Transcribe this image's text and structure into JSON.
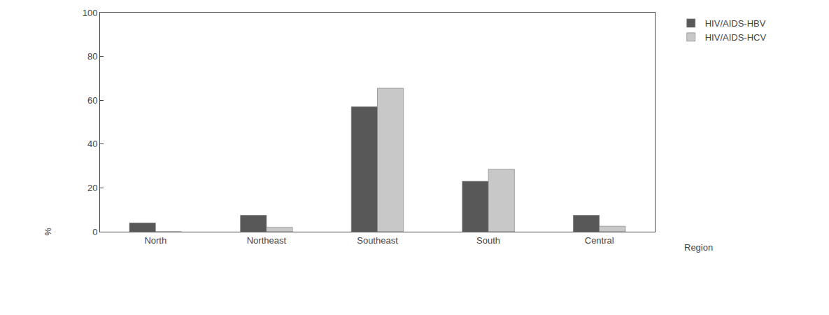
{
  "chart_data": {
    "type": "bar",
    "x_label": "Region",
    "y_label": "%",
    "categories": [
      "North",
      "Northeast",
      "Southeast",
      "South",
      "Central"
    ],
    "series": [
      {
        "name": "HIV/AIDS-HBV",
        "color": "#585858",
        "values": [
          4,
          7.5,
          57,
          23,
          7.5
        ]
      },
      {
        "name": "HIV/AIDS-HCV",
        "color": "#c8c8c8",
        "values": [
          0,
          2,
          65.5,
          28.5,
          2.5
        ]
      }
    ],
    "ylim": [
      0,
      100
    ],
    "yticks": [
      0,
      20,
      40,
      60,
      80,
      100
    ],
    "grid": false,
    "legend": "right"
  }
}
